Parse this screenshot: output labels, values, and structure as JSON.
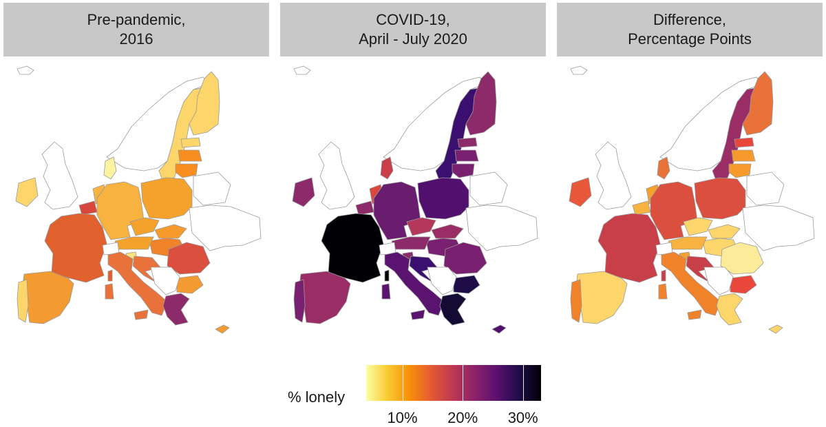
{
  "panels": [
    {
      "title_line1": "Pre-pandemic,",
      "title_line2": "2016",
      "countries": [
        {
          "id": "iceland",
          "color": "#ffffff"
        },
        {
          "id": "norway",
          "color": "#ffffff"
        },
        {
          "id": "sweden",
          "color": "#fcd56b"
        },
        {
          "id": "finland",
          "color": "#fcd56b"
        },
        {
          "id": "estonia",
          "color": "#fcd56b"
        },
        {
          "id": "latvia",
          "color": "#f98e20"
        },
        {
          "id": "lithuania",
          "color": "#f98e20"
        },
        {
          "id": "uk",
          "color": "#ffffff"
        },
        {
          "id": "ireland",
          "color": "#fcd56b"
        },
        {
          "id": "denmark",
          "color": "#fcf3a0"
        },
        {
          "id": "netherlands",
          "color": "#f7b240"
        },
        {
          "id": "belgium",
          "color": "#d9473c"
        },
        {
          "id": "germany",
          "color": "#f7b240"
        },
        {
          "id": "poland",
          "color": "#f4a22c"
        },
        {
          "id": "czechia",
          "color": "#f4a22c"
        },
        {
          "id": "slovakia",
          "color": "#f79a2c"
        },
        {
          "id": "hungary",
          "color": "#f0822a"
        },
        {
          "id": "austria",
          "color": "#f4a22c"
        },
        {
          "id": "france",
          "color": "#e0602e"
        },
        {
          "id": "switzerland",
          "color": "#ffffff"
        },
        {
          "id": "slovenia",
          "color": "#fce37a"
        },
        {
          "id": "croatia",
          "color": "#e9713a"
        },
        {
          "id": "italy",
          "color": "#e9713a"
        },
        {
          "id": "spain",
          "color": "#f39a30"
        },
        {
          "id": "portugal",
          "color": "#fcd56b"
        },
        {
          "id": "romania",
          "color": "#da4f3e"
        },
        {
          "id": "bulgaria",
          "color": "#f39a30"
        },
        {
          "id": "greece",
          "color": "#8c2a6a"
        },
        {
          "id": "cyprus",
          "color": "#f39a30"
        },
        {
          "id": "corsica",
          "color": "#e0602e"
        },
        {
          "id": "sardinia",
          "color": "#e9713a"
        },
        {
          "id": "sicily",
          "color": "#e9713a"
        },
        {
          "id": "belarus",
          "color": "#ffffff"
        },
        {
          "id": "ukraine",
          "color": "#ffffff"
        },
        {
          "id": "balkans",
          "color": "#ffffff"
        }
      ]
    },
    {
      "title_line1": "COVID-19,",
      "title_line2": "April - July 2020",
      "countries": [
        {
          "id": "iceland",
          "color": "#ffffff"
        },
        {
          "id": "norway",
          "color": "#ffffff"
        },
        {
          "id": "sweden",
          "color": "#3b0f70"
        },
        {
          "id": "finland",
          "color": "#8c2a6a"
        },
        {
          "id": "estonia",
          "color": "#8c2a6a"
        },
        {
          "id": "latvia",
          "color": "#7a2070"
        },
        {
          "id": "lithuania",
          "color": "#7a2070"
        },
        {
          "id": "uk",
          "color": "#ffffff"
        },
        {
          "id": "ireland",
          "color": "#8c2a6a"
        },
        {
          "id": "denmark",
          "color": "#c83f4a"
        },
        {
          "id": "netherlands",
          "color": "#d9473c"
        },
        {
          "id": "belgium",
          "color": "#8c2a6a"
        },
        {
          "id": "germany",
          "color": "#6a1c6e"
        },
        {
          "id": "poland",
          "color": "#52106e"
        },
        {
          "id": "czechia",
          "color": "#b5375b"
        },
        {
          "id": "slovakia",
          "color": "#9a2d66"
        },
        {
          "id": "hungary",
          "color": "#7a2070"
        },
        {
          "id": "austria",
          "color": "#8c2a6a"
        },
        {
          "id": "france",
          "color": "#000004"
        },
        {
          "id": "switzerland",
          "color": "#ffffff"
        },
        {
          "id": "slovenia",
          "color": "#8c2a6a"
        },
        {
          "id": "croatia",
          "color": "#3b0f70"
        },
        {
          "id": "italy",
          "color": "#5a136e"
        },
        {
          "id": "spain",
          "color": "#9a2d66"
        },
        {
          "id": "portugal",
          "color": "#7a2070"
        },
        {
          "id": "romania",
          "color": "#7a2070"
        },
        {
          "id": "bulgaria",
          "color": "#1d0c45"
        },
        {
          "id": "greece",
          "color": "#140b35"
        },
        {
          "id": "cyprus",
          "color": "#52106e"
        },
        {
          "id": "corsica",
          "color": "#000004"
        },
        {
          "id": "sardinia",
          "color": "#5a136e"
        },
        {
          "id": "sicily",
          "color": "#5a136e"
        },
        {
          "id": "belarus",
          "color": "#ffffff"
        },
        {
          "id": "ukraine",
          "color": "#ffffff"
        },
        {
          "id": "balkans",
          "color": "#ffffff"
        }
      ]
    },
    {
      "title_line1": "Difference,",
      "title_line2": "Percentage Points",
      "countries": [
        {
          "id": "iceland",
          "color": "#ffffff"
        },
        {
          "id": "norway",
          "color": "#ffffff"
        },
        {
          "id": "sweden",
          "color": "#9a2d66"
        },
        {
          "id": "finland",
          "color": "#e9713a"
        },
        {
          "id": "estonia",
          "color": "#e9473c"
        },
        {
          "id": "latvia",
          "color": "#f79a2c"
        },
        {
          "id": "lithuania",
          "color": "#f79a2c"
        },
        {
          "id": "uk",
          "color": "#ffffff"
        },
        {
          "id": "ireland",
          "color": "#e9573a"
        },
        {
          "id": "denmark",
          "color": "#e9713a"
        },
        {
          "id": "netherlands",
          "color": "#f4a22c"
        },
        {
          "id": "belgium",
          "color": "#f7b240"
        },
        {
          "id": "germany",
          "color": "#da4f3e"
        },
        {
          "id": "poland",
          "color": "#da4f3e"
        },
        {
          "id": "czechia",
          "color": "#fcd56b"
        },
        {
          "id": "slovakia",
          "color": "#fcd56b"
        },
        {
          "id": "hungary",
          "color": "#fcd56b"
        },
        {
          "id": "austria",
          "color": "#f7b240"
        },
        {
          "id": "france",
          "color": "#c83f4a"
        },
        {
          "id": "switzerland",
          "color": "#ffffff"
        },
        {
          "id": "slovenia",
          "color": "#f4a22c"
        },
        {
          "id": "croatia",
          "color": "#c83f4a"
        },
        {
          "id": "italy",
          "color": "#f0822a"
        },
        {
          "id": "spain",
          "color": "#fcd56b"
        },
        {
          "id": "portugal",
          "color": "#f0822a"
        },
        {
          "id": "romania",
          "color": "#fcec9a"
        },
        {
          "id": "bulgaria",
          "color": "#e9473c"
        },
        {
          "id": "greece",
          "color": "#fcd56b"
        },
        {
          "id": "cyprus",
          "color": "#fcd56b"
        },
        {
          "id": "corsica",
          "color": "#c83f4a"
        },
        {
          "id": "sardinia",
          "color": "#f0822a"
        },
        {
          "id": "sicily",
          "color": "#f0822a"
        },
        {
          "id": "belarus",
          "color": "#ffffff"
        },
        {
          "id": "ukraine",
          "color": "#ffffff"
        },
        {
          "id": "balkans",
          "color": "#ffffff"
        }
      ]
    }
  ],
  "legend": {
    "title": "% lonely",
    "colors": [
      "#fcffa4",
      "#f8c931",
      "#f98e09",
      "#e35932",
      "#bc3754",
      "#8a226a",
      "#57106e",
      "#1f0c48",
      "#000004"
    ],
    "range_min": 4,
    "range_max": 33,
    "ticks": [
      {
        "value": 10,
        "label": "10%"
      },
      {
        "value": 20,
        "label": "20%"
      },
      {
        "value": 30,
        "label": "30%"
      }
    ]
  }
}
